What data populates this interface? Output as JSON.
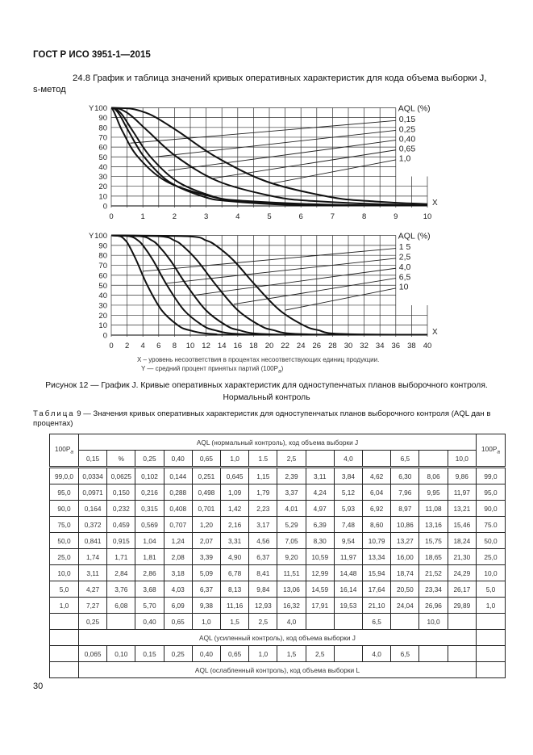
{
  "header": "ГОСТ Р ИСО 3951-1—2015",
  "section_title": "24.8 График и таблица значений кривых оперативных характеристик для кода объема выборки J, s-метод",
  "legend": {
    "x_text": "X  – уровень несоответствия в процентах несоответствующих единиц продукции.",
    "y_text": "Y — средний процент принятых партий (100P",
    "y_sub": "a",
    "y_close": ")"
  },
  "figure_caption": {
    "line1": "Рисунок 12 — График J. Кривые оперативных характеристик для одноступенчатых планов выборочного контроля.",
    "line2": "Нормальный контроль"
  },
  "table_caption": {
    "label": "Таблица",
    "text": " 9 — Значения кривых оперативных характеристик для одноступенчатых планов выборочного контроля (AQL дан в процентах)"
  },
  "table": {
    "side_header": "100P",
    "side_sub": "a",
    "group_normal": "AQL (нормальный контроль), код объема выборки J",
    "group_tightened": "AQL (усиленный контроль), код объема выборки J",
    "group_reduced": "AQL (ослабленный контроль), код объема выборки L",
    "columns": [
      "0,15",
      "%",
      "0,25",
      "0,40",
      "0,65",
      "1,0",
      "1.5",
      "2,5",
      "",
      "4,0",
      "",
      "6,5",
      "",
      "10,0"
    ],
    "rows": [
      {
        "pa": "99,0,0",
        "right": "99,0",
        "values": [
          "0,0334",
          "0,0625",
          "0,102",
          "0,144",
          "0,251",
          "0,645",
          "1,15",
          "2,39",
          "3,11",
          "3,84",
          "4,62",
          "6,30",
          "8,06",
          "9,86"
        ]
      },
      {
        "pa": "95,0",
        "right": "95,0",
        "values": [
          "0,0971",
          "0,150",
          "0,216",
          "0,288",
          "0,498",
          "1,09",
          "1,79",
          "3,37",
          "4,24",
          "5,12",
          "6,04",
          "7,96",
          "9,95",
          "11,97"
        ]
      },
      {
        "pa": "90,0",
        "right": "90,0",
        "values": [
          "0,164",
          "0,232",
          "0,315",
          "0,408",
          "0,701",
          "1,42",
          "2,23",
          "4,01",
          "4,97",
          "5,93",
          "6,92",
          "8,97",
          "11,08",
          "13,21"
        ]
      },
      {
        "pa": "75,0",
        "right": "75.0",
        "values": [
          "0,372",
          "0,459",
          "0,569",
          "0,707",
          "1,20",
          "2,16",
          "3,17",
          "5,29",
          "6,39",
          "7,48",
          "8,60",
          "10,86",
          "13,16",
          "15,46"
        ]
      },
      {
        "pa": "50,0",
        "right": "50,0",
        "values": [
          "0,841",
          "0,915",
          "1,04",
          "1,24",
          "2,07",
          "3,31",
          "4,56",
          "7,05",
          "8,30",
          "9,54",
          "10,79",
          "13,27",
          "15,75",
          "18,24"
        ]
      },
      {
        "pa": "25,0",
        "right": "25,0",
        "values": [
          "1,74",
          "1,71",
          "1,81",
          "2,08",
          "3,39",
          "4,90",
          "6,37",
          "9,20",
          "10,59",
          "11,97",
          "13,34",
          "16,00",
          "18,65",
          "21,30"
        ]
      },
      {
        "pa": "10,0",
        "right": "10,0",
        "values": [
          "3,11",
          "2,84",
          "2,86",
          "3,18",
          "5,09",
          "6,78",
          "8,41",
          "11,51",
          "12,99",
          "14,48",
          "15,94",
          "18,74",
          "21,52",
          "24,29"
        ]
      },
      {
        "pa": "5,0",
        "right": "5,0",
        "values": [
          "4,27",
          "3,76",
          "3,68",
          "4,03",
          "6,37",
          "8,13",
          "9,84",
          "13,06",
          "14,59",
          "16,14",
          "17,64",
          "20,50",
          "23,34",
          "26,17"
        ]
      },
      {
        "pa": "1,0",
        "right": "1,0",
        "values": [
          "7,27",
          "6,08",
          "5,70",
          "6,09",
          "9,38",
          "11,16",
          "12,93",
          "16,32",
          "17,91",
          "19,53",
          "21,10",
          "24,04",
          "26,96",
          "29,89"
        ]
      }
    ],
    "tightened": [
      "0,25",
      "",
      "0,40",
      "0,65",
      "1,0",
      "1,5",
      "2,5",
      "4,0",
      "",
      "",
      "6,5",
      "",
      "10,0",
      ""
    ],
    "reduced": [
      "0,065",
      "0,10",
      "0,15",
      "0,25",
      "0,40",
      "0,65",
      "1,0",
      "1,5",
      "2,5",
      "",
      "4,0",
      "6,5",
      "",
      ""
    ]
  },
  "page_number": "30",
  "chart_data": [
    {
      "type": "line",
      "title": "",
      "xlabel": "X",
      "ylabel": "Y",
      "xlim": [
        0,
        10
      ],
      "ylim": [
        0,
        100
      ],
      "xticks": [
        "0",
        "1",
        "2",
        "3",
        "4",
        "5",
        "6",
        "7",
        "8",
        "9",
        "10"
      ],
      "yticks": [
        "0",
        "10",
        "20",
        "30",
        "40",
        "50",
        "60",
        "70",
        "80",
        "90",
        "100"
      ],
      "grid": true,
      "legend_title": "AQL (%)",
      "legend_placement": "right",
      "pa": [
        99,
        95,
        90,
        75,
        50,
        25,
        10,
        5,
        1
      ],
      "series": [
        {
          "name": "0,15",
          "x": [
            0.0334,
            0.0971,
            0.164,
            0.372,
            0.841,
            1.74,
            3.11,
            4.27,
            7.27
          ]
        },
        {
          "name": "0,25",
          "x": [
            0.102,
            0.216,
            0.315,
            0.569,
            1.04,
            1.81,
            2.86,
            3.68,
            5.7
          ]
        },
        {
          "name": "0,40",
          "x": [
            0.144,
            0.288,
            0.408,
            0.707,
            1.24,
            2.08,
            3.18,
            4.03,
            6.09
          ]
        },
        {
          "name": "0,65",
          "x": [
            0.251,
            0.498,
            0.701,
            1.2,
            2.07,
            3.39,
            5.09,
            6.37,
            9.38
          ]
        },
        {
          "name": "1,0",
          "x": [
            0.645,
            1.09,
            1.42,
            2.16,
            3.31,
            4.9,
            6.78,
            8.13,
            11.16
          ]
        }
      ]
    },
    {
      "type": "line",
      "title": "",
      "xlabel": "X",
      "ylabel": "Y",
      "xlim": [
        0,
        40
      ],
      "ylim": [
        0,
        100
      ],
      "xticks": [
        "0",
        "2",
        "4",
        "6",
        "8",
        "10",
        "12",
        "14",
        "16",
        "18",
        "20",
        "22",
        "24",
        "26",
        "28",
        "30",
        "32",
        "34",
        "36",
        "38",
        "40"
      ],
      "yticks": [
        "0",
        "10",
        "20",
        "30",
        "40",
        "50",
        "60",
        "70",
        "80",
        "90",
        "100"
      ],
      "grid": true,
      "legend_title": "AQL (%)",
      "legend_placement": "right",
      "pa": [
        99,
        95,
        90,
        75,
        50,
        25,
        10,
        5,
        1
      ],
      "series": [
        {
          "name": "1 5",
          "x": [
            1.15,
            1.79,
            2.23,
            3.17,
            4.56,
            6.37,
            8.41,
            9.84,
            12.93
          ]
        },
        {
          "name": "2,5",
          "x": [
            2.39,
            3.37,
            4.01,
            5.29,
            7.05,
            9.2,
            11.51,
            13.06,
            16.32
          ]
        },
        {
          "name": "4,0",
          "x": [
            3.84,
            5.12,
            5.93,
            7.48,
            9.54,
            11.97,
            14.48,
            16.14,
            19.53
          ]
        },
        {
          "name": "6,5",
          "x": [
            6.3,
            7.96,
            8.97,
            10.86,
            13.27,
            16.0,
            18.74,
            20.5,
            24.04
          ]
        },
        {
          "name": "10",
          "x": [
            9.86,
            11.97,
            13.21,
            15.46,
            18.24,
            21.3,
            24.29,
            26.17,
            29.89
          ]
        }
      ]
    }
  ]
}
